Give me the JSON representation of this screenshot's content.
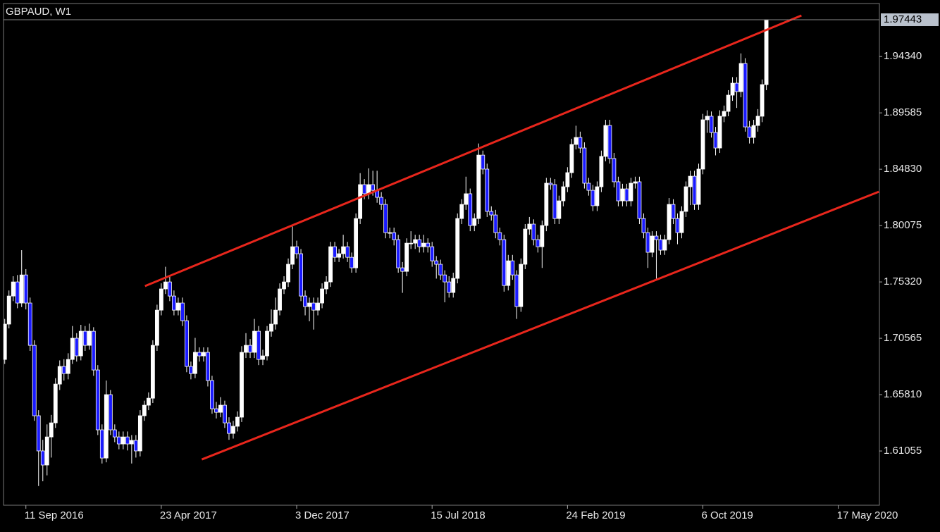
{
  "chart_data": {
    "type": "candlestick",
    "title": "GBPAUD, W1",
    "x": [
      "2016-08-07",
      "2016-08-14",
      "2016-08-21",
      "2016-08-28",
      "2016-09-04",
      "2016-09-11",
      "2016-09-18",
      "2016-09-25",
      "2016-10-02",
      "2016-10-09",
      "2016-10-16",
      "2016-10-23",
      "2016-10-30",
      "2016-11-06",
      "2016-11-13",
      "2016-11-20",
      "2016-11-27",
      "2016-12-04",
      "2016-12-11",
      "2016-12-18",
      "2016-12-25",
      "2017-01-01",
      "2017-01-08",
      "2017-01-15",
      "2017-01-22",
      "2017-01-29",
      "2017-02-05",
      "2017-02-12",
      "2017-02-19",
      "2017-02-26",
      "2017-03-05",
      "2017-03-12",
      "2017-03-19",
      "2017-03-26",
      "2017-04-02",
      "2017-04-09",
      "2017-04-16",
      "2017-04-23",
      "2017-04-30",
      "2017-05-07",
      "2017-05-14",
      "2017-05-21",
      "2017-05-28",
      "2017-06-04",
      "2017-06-11",
      "2017-06-18",
      "2017-06-25",
      "2017-07-02",
      "2017-07-09",
      "2017-07-16",
      "2017-07-23",
      "2017-07-30",
      "2017-08-06",
      "2017-08-13",
      "2017-08-20",
      "2017-08-27",
      "2017-09-03",
      "2017-09-10",
      "2017-09-17",
      "2017-09-24",
      "2017-10-01",
      "2017-10-08",
      "2017-10-15",
      "2017-10-22",
      "2017-10-29",
      "2017-11-05",
      "2017-11-12",
      "2017-11-19",
      "2017-11-26",
      "2017-12-03",
      "2017-12-10",
      "2017-12-17",
      "2017-12-24",
      "2017-12-31",
      "2018-01-07",
      "2018-01-14",
      "2018-01-21",
      "2018-01-28",
      "2018-02-04",
      "2018-02-11",
      "2018-02-18",
      "2018-02-25",
      "2018-03-04",
      "2018-03-11",
      "2018-03-18",
      "2018-03-25",
      "2018-04-01",
      "2018-04-08",
      "2018-04-15",
      "2018-04-22",
      "2018-04-29",
      "2018-05-06",
      "2018-05-13",
      "2018-05-20",
      "2018-05-27",
      "2018-06-03",
      "2018-06-10",
      "2018-06-17",
      "2018-06-24",
      "2018-07-01",
      "2018-07-08",
      "2018-07-15",
      "2018-07-22",
      "2018-07-29",
      "2018-08-05",
      "2018-08-12",
      "2018-08-19",
      "2018-08-26",
      "2018-09-02",
      "2018-09-09",
      "2018-09-16",
      "2018-09-23",
      "2018-09-30",
      "2018-10-07",
      "2018-10-14",
      "2018-10-21",
      "2018-10-28",
      "2018-11-04",
      "2018-11-11",
      "2018-11-18",
      "2018-11-25",
      "2018-12-02",
      "2018-12-09",
      "2018-12-16",
      "2018-12-23",
      "2018-12-30",
      "2019-01-06",
      "2019-01-13",
      "2019-01-20",
      "2019-01-27",
      "2019-02-03",
      "2019-02-10",
      "2019-02-17",
      "2019-02-24",
      "2019-03-03",
      "2019-03-10",
      "2019-03-17",
      "2019-03-24",
      "2019-03-31",
      "2019-04-07",
      "2019-04-14",
      "2019-04-21",
      "2019-04-28",
      "2019-05-05",
      "2019-05-12",
      "2019-05-19",
      "2019-05-26",
      "2019-06-02",
      "2019-06-09",
      "2019-06-16",
      "2019-06-23",
      "2019-06-30",
      "2019-07-07",
      "2019-07-14",
      "2019-07-21",
      "2019-07-28",
      "2019-08-04",
      "2019-08-11",
      "2019-08-18",
      "2019-08-25",
      "2019-09-01",
      "2019-09-08",
      "2019-09-15",
      "2019-09-22",
      "2019-09-29",
      "2019-10-06",
      "2019-10-13",
      "2019-10-20",
      "2019-10-27",
      "2019-11-03",
      "2019-11-10",
      "2019-11-17",
      "2019-11-24",
      "2019-12-01",
      "2019-12-08",
      "2019-12-15",
      "2019-12-22",
      "2019-12-29",
      "2020-01-05",
      "2020-01-12",
      "2020-01-19"
    ],
    "open": [
      1.6878,
      1.7176,
      1.7413,
      1.7532,
      1.7354,
      1.7591,
      1.7354,
      1.6997,
      1.6403,
      1.6106,
      1.5987,
      1.6224,
      1.6343,
      1.667,
      1.6819,
      1.6759,
      1.6878,
      1.7057,
      1.6908,
      1.7116,
      1.6997,
      1.7116,
      1.6789,
      1.6284,
      1.6046,
      1.6581,
      1.6284,
      1.6224,
      1.6165,
      1.6224,
      1.6165,
      1.6195,
      1.6106,
      1.6403,
      1.6492,
      1.6551,
      1.6997,
      1.7294,
      1.7473,
      1.7532,
      1.7413,
      1.7294,
      1.7354,
      1.7205,
      1.6819,
      1.6759,
      1.6938,
      1.6908,
      1.6938,
      1.67,
      1.6462,
      1.6432,
      1.6492,
      1.6343,
      1.6254,
      1.6314,
      1.6391,
      1.6938,
      1.6997,
      1.6938,
      1.7116,
      1.6878,
      1.6908,
      1.7116,
      1.7176,
      1.7294,
      1.7473,
      1.7532,
      1.7681,
      1.7829,
      1.777,
      1.7413,
      1.7324,
      1.7354,
      1.7294,
      1.7354,
      1.7473,
      1.7532,
      1.7829,
      1.774,
      1.777,
      1.7829,
      1.774,
      1.7651,
      1.8067,
      1.8353,
      1.8276,
      1.8353,
      1.8305,
      1.8246,
      1.8186,
      1.7948,
      1.7948,
      1.7889,
      1.7651,
      1.7621,
      1.7859,
      1.7859,
      1.7889,
      1.7829,
      1.7859,
      1.7829,
      1.771,
      1.7681,
      1.7591,
      1.7532,
      1.7443,
      1.7562,
      1.8067,
      1.8186,
      1.8276,
      1.8008,
      1.8067,
      1.8602,
      1.8484,
      1.8127,
      1.8097,
      1.7948,
      1.7889,
      1.7502,
      1.771,
      1.7591,
      1.7324,
      1.7681,
      1.7978,
      1.802,
      1.7889,
      1.7829,
      1.8008,
      1.8365,
      1.8353,
      1.8067,
      1.8216,
      1.8335,
      1.8454,
      1.8692,
      1.8751,
      1.8662,
      1.8365,
      1.8305,
      1.8175,
      1.8335,
      1.8591,
      1.8852,
      1.8573,
      1.8377,
      1.8216,
      1.8317,
      1.8216,
      1.8365,
      1.8377,
      1.8067,
      1.7948,
      1.7782,
      1.7919,
      1.7889,
      1.78,
      1.7889,
      1.8186,
      1.8067,
      1.7948,
      1.8127,
      1.8335,
      1.8424,
      1.8186,
      1.8484,
      1.89,
      1.893,
      1.8793,
      1.8662,
      1.893,
      1.8971,
      1.9108,
      1.9209,
      1.9138,
      1.9375,
      1.884,
      1.8751,
      1.8852,
      1.893,
      1.9197
    ],
    "high": [
      1.722,
      1.746,
      1.758,
      1.759,
      1.78,
      1.764,
      1.74,
      1.704,
      1.645,
      1.62,
      1.633,
      1.641,
      1.672,
      1.687,
      1.688,
      1.693,
      1.716,
      1.71,
      1.717,
      1.716,
      1.718,
      1.715,
      1.683,
      1.633,
      1.67,
      1.662,
      1.633,
      1.627,
      1.627,
      1.627,
      1.624,
      1.624,
      1.645,
      1.653,
      1.66,
      1.704,
      1.734,
      1.752,
      1.766,
      1.758,
      1.746,
      1.74,
      1.74,
      1.725,
      1.686,
      1.706,
      1.698,
      1.698,
      1.698,
      1.674,
      1.652,
      1.656,
      1.653,
      1.639,
      1.636,
      1.644,
      1.699,
      1.71,
      1.705,
      1.722,
      1.716,
      1.696,
      1.716,
      1.73,
      1.74,
      1.752,
      1.758,
      1.773,
      1.8,
      1.788,
      1.781,
      1.746,
      1.74,
      1.74,
      1.74,
      1.752,
      1.758,
      1.787,
      1.787,
      1.781,
      1.793,
      1.787,
      1.778,
      1.811,
      1.845,
      1.84,
      1.849,
      1.847,
      1.847,
      1.829,
      1.823,
      1.799,
      1.799,
      1.793,
      1.77,
      1.79,
      1.796,
      1.793,
      1.793,
      1.793,
      1.79,
      1.787,
      1.775,
      1.772,
      1.763,
      1.758,
      1.761,
      1.811,
      1.823,
      1.842,
      1.832,
      1.811,
      1.87,
      1.864,
      1.853,
      1.817,
      1.814,
      1.799,
      1.793,
      1.776,
      1.776,
      1.763,
      1.773,
      1.802,
      1.808,
      1.806,
      1.793,
      1.805,
      1.841,
      1.841,
      1.84,
      1.826,
      1.838,
      1.85,
      1.874,
      1.885,
      1.88,
      1.871,
      1.841,
      1.835,
      1.838,
      1.864,
      1.89,
      1.89,
      1.862,
      1.842,
      1.836,
      1.836,
      1.841,
      1.842,
      1.842,
      1.811,
      1.799,
      1.796,
      1.796,
      1.793,
      1.793,
      1.824,
      1.823,
      1.811,
      1.817,
      1.838,
      1.847,
      1.847,
      1.853,
      1.895,
      1.898,
      1.897,
      1.884,
      1.898,
      1.902,
      1.915,
      1.926,
      1.926,
      1.946,
      1.942,
      1.889,
      1.89,
      1.899,
      1.924,
      1.97443
    ],
    "low": [
      1.684,
      1.714,
      1.737,
      1.731,
      1.732,
      1.73,
      1.695,
      1.636,
      1.581,
      1.585,
      1.59,
      1.605,
      1.63,
      1.662,
      1.67,
      1.671,
      1.684,
      1.686,
      1.687,
      1.695,
      1.696,
      1.674,
      1.624,
      1.6,
      1.601,
      1.624,
      1.618,
      1.612,
      1.612,
      1.611,
      1.6,
      1.605,
      1.606,
      1.636,
      1.645,
      1.651,
      1.695,
      1.725,
      1.743,
      1.737,
      1.725,
      1.725,
      1.716,
      1.677,
      1.671,
      1.672,
      1.686,
      1.686,
      1.665,
      1.642,
      1.638,
      1.639,
      1.63,
      1.62,
      1.621,
      1.627,
      1.635,
      1.689,
      1.689,
      1.689,
      1.683,
      1.683,
      1.687,
      1.707,
      1.713,
      1.725,
      1.743,
      1.749,
      1.764,
      1.773,
      1.737,
      1.725,
      1.72,
      1.713,
      1.725,
      1.731,
      1.743,
      1.749,
      1.77,
      1.77,
      1.773,
      1.77,
      1.761,
      1.761,
      1.802,
      1.823,
      1.823,
      1.826,
      1.82,
      1.814,
      1.79,
      1.79,
      1.784,
      1.761,
      1.744,
      1.758,
      1.781,
      1.781,
      1.778,
      1.778,
      1.778,
      1.766,
      1.756,
      1.755,
      1.736,
      1.74,
      1.74,
      1.752,
      1.802,
      1.814,
      1.796,
      1.796,
      1.802,
      1.844,
      1.808,
      1.805,
      1.79,
      1.784,
      1.745,
      1.746,
      1.755,
      1.722,
      1.728,
      1.764,
      1.793,
      1.784,
      1.778,
      1.765,
      1.796,
      1.831,
      1.802,
      1.802,
      1.817,
      1.829,
      1.841,
      1.865,
      1.862,
      1.832,
      1.826,
      1.813,
      1.813,
      1.829,
      1.855,
      1.853,
      1.833,
      1.817,
      1.817,
      1.817,
      1.817,
      1.832,
      1.802,
      1.79,
      1.765,
      1.774,
      1.756,
      1.776,
      1.776,
      1.785,
      1.802,
      1.785,
      1.79,
      1.808,
      1.818,
      1.814,
      1.814,
      1.844,
      1.879,
      1.875,
      1.86,
      1.862,
      1.888,
      1.893,
      1.906,
      1.9,
      1.909,
      1.88,
      1.87,
      1.87,
      1.88,
      1.888,
      1.915
    ],
    "close": [
      1.7176,
      1.7413,
      1.7532,
      1.7354,
      1.7591,
      1.7354,
      1.6997,
      1.6403,
      1.6106,
      1.5987,
      1.6224,
      1.6343,
      1.667,
      1.6819,
      1.6759,
      1.6878,
      1.7057,
      1.6908,
      1.7116,
      1.6997,
      1.7116,
      1.6789,
      1.6284,
      1.6046,
      1.6581,
      1.6284,
      1.6224,
      1.6165,
      1.6224,
      1.6165,
      1.6195,
      1.6106,
      1.6403,
      1.6492,
      1.6551,
      1.6997,
      1.7294,
      1.7473,
      1.7532,
      1.7413,
      1.7294,
      1.7354,
      1.7205,
      1.6819,
      1.6759,
      1.6938,
      1.6908,
      1.6938,
      1.67,
      1.6462,
      1.6432,
      1.6492,
      1.6343,
      1.6254,
      1.6314,
      1.6391,
      1.6938,
      1.6997,
      1.6938,
      1.7116,
      1.6878,
      1.6908,
      1.7116,
      1.7176,
      1.7294,
      1.7473,
      1.7532,
      1.7681,
      1.7829,
      1.777,
      1.7413,
      1.7324,
      1.7354,
      1.7294,
      1.7354,
      1.7473,
      1.7532,
      1.7829,
      1.774,
      1.777,
      1.7829,
      1.774,
      1.7651,
      1.8067,
      1.8353,
      1.8276,
      1.8353,
      1.8305,
      1.8246,
      1.8186,
      1.7948,
      1.7948,
      1.7889,
      1.7651,
      1.7621,
      1.7859,
      1.7859,
      1.7889,
      1.7829,
      1.7859,
      1.7829,
      1.771,
      1.7681,
      1.7591,
      1.7532,
      1.7443,
      1.7562,
      1.8067,
      1.8186,
      1.8276,
      1.8008,
      1.8067,
      1.8602,
      1.8484,
      1.8127,
      1.8097,
      1.7948,
      1.7889,
      1.7502,
      1.771,
      1.7591,
      1.7324,
      1.7681,
      1.7978,
      1.802,
      1.7889,
      1.7829,
      1.8008,
      1.8365,
      1.8353,
      1.8067,
      1.8216,
      1.8335,
      1.8454,
      1.8692,
      1.8751,
      1.8662,
      1.8365,
      1.8305,
      1.8175,
      1.8335,
      1.8591,
      1.8852,
      1.8573,
      1.8377,
      1.8216,
      1.8317,
      1.8216,
      1.8365,
      1.8377,
      1.8067,
      1.7948,
      1.7782,
      1.7919,
      1.7889,
      1.78,
      1.7889,
      1.8186,
      1.8067,
      1.7948,
      1.8127,
      1.8335,
      1.8424,
      1.8186,
      1.8484,
      1.89,
      1.893,
      1.8793,
      1.8662,
      1.893,
      1.8971,
      1.9108,
      1.9209,
      1.9138,
      1.9375,
      1.884,
      1.8751,
      1.8852,
      1.893,
      1.9197,
      1.97443
    ],
    "up_color": "#ffffff",
    "down_color": "#1a1aff",
    "wick_color": "#ffffff",
    "xlim": [
      "2016-08-05",
      "2020-07-24"
    ],
    "xticks": [
      {
        "value": "2016-09-11",
        "label": "11 Sep 2016"
      },
      {
        "value": "2017-04-23",
        "label": "23 Apr 2017"
      },
      {
        "value": "2017-12-03",
        "label": "3 Dec 2017"
      },
      {
        "value": "2018-07-15",
        "label": "15 Jul 2018"
      },
      {
        "value": "2019-02-24",
        "label": "24 Feb 2019"
      },
      {
        "value": "2019-10-06",
        "label": "6 Oct 2019"
      },
      {
        "value": "2020-05-17",
        "label": "17 May 2020"
      }
    ],
    "ylim": [
      1.5648,
      1.9881
    ],
    "yticks": [
      1.61055,
      {
        "value": 1.6581,
        "label": "1.65810"
      },
      1.70565,
      {
        "value": 1.7532,
        "label": "1.75320"
      },
      1.80075,
      {
        "value": 1.8483,
        "label": "1.84830"
      },
      1.89585,
      {
        "value": 1.9434,
        "label": "1.94340"
      }
    ],
    "trendlines": [
      {
        "x": [
          "2017-03-27",
          "2020-03-17"
        ],
        "y": [
          1.7497,
          1.978
        ]
      },
      {
        "x": [
          "2017-06-29",
          "2020-07-23"
        ],
        "y": [
          1.6034,
          1.8293
        ]
      }
    ],
    "trendline_color": "#e8261c"
  }
}
